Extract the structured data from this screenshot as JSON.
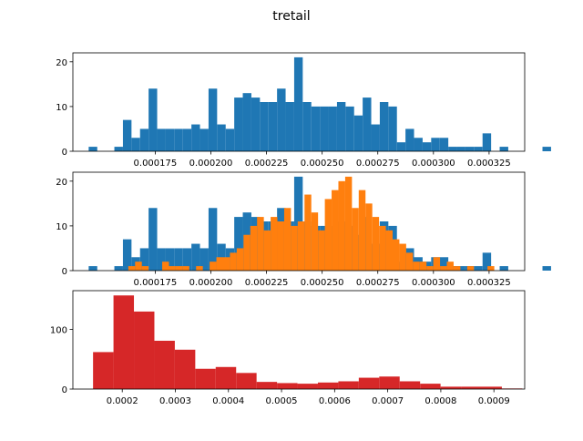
{
  "title": "tretail",
  "colors": {
    "blue": "#1f77b4",
    "orange": "#ff7f0e",
    "red": "#d62728"
  },
  "chart_data": [
    {
      "type": "bar",
      "subtype": "histogram",
      "xlim": [
        0.000138,
        0.000341
      ],
      "ylim": [
        0,
        22
      ],
      "yticks": [
        0,
        10,
        20
      ],
      "xticks": [
        0.000175,
        0.0002,
        0.000225,
        0.00025,
        0.000275,
        0.0003,
        0.000325
      ],
      "xtick_labels": [
        "0.000175",
        "0.000200",
        "0.000225",
        "0.000250",
        "0.000275",
        "0.000300",
        "0.000325"
      ],
      "bin_start": 0.0001451,
      "bin_width": 3.847e-06,
      "series": [
        {
          "color": "blue",
          "values": [
            1,
            0,
            0,
            1,
            7,
            3,
            5,
            14,
            5,
            5,
            5,
            5,
            6,
            5,
            14,
            6,
            5,
            12,
            13,
            12,
            11,
            11,
            14,
            11,
            21,
            11,
            10,
            10,
            10,
            11,
            10,
            8,
            12,
            6,
            11,
            10,
            2,
            5,
            3,
            2,
            3,
            3,
            1,
            1,
            1,
            1,
            4,
            0,
            1,
            0,
            0,
            0,
            0,
            1
          ]
        }
      ]
    },
    {
      "type": "bar",
      "subtype": "histogram",
      "xlim": [
        0.000138,
        0.000341
      ],
      "ylim": [
        0,
        22
      ],
      "yticks": [
        0,
        10,
        20
      ],
      "xticks": [
        0.000175,
        0.0002,
        0.000225,
        0.00025,
        0.000275,
        0.0003,
        0.000325
      ],
      "xtick_labels": [
        "0.000175",
        "0.000200",
        "0.000225",
        "0.000250",
        "0.000275",
        "0.000300",
        "0.000325"
      ],
      "series": [
        {
          "color": "blue",
          "bin_start": 0.0001451,
          "bin_width": 3.847e-06,
          "values": [
            1,
            0,
            0,
            1,
            7,
            3,
            5,
            14,
            5,
            5,
            5,
            5,
            6,
            5,
            14,
            6,
            5,
            12,
            13,
            12,
            11,
            11,
            14,
            11,
            21,
            11,
            10,
            10,
            10,
            11,
            10,
            8,
            12,
            6,
            11,
            10,
            2,
            5,
            3,
            2,
            3,
            3,
            1,
            1,
            1,
            1,
            4,
            0,
            1,
            0,
            0,
            0,
            0,
            1
          ]
        },
        {
          "color": "orange",
          "bin_start": 0.0001629,
          "bin_width": 3.045e-06,
          "values": [
            1,
            2,
            1,
            0,
            0,
            2,
            1,
            1,
            1,
            0,
            1,
            0,
            2,
            3,
            3,
            4,
            5,
            8,
            10,
            12,
            9,
            12,
            11,
            14,
            10,
            11,
            17,
            13,
            9,
            16,
            18,
            20,
            21,
            14,
            18,
            15,
            12,
            10,
            9,
            7,
            6,
            4,
            2,
            2,
            1,
            3,
            1,
            2,
            1,
            0,
            1,
            0,
            0,
            1
          ]
        }
      ]
    },
    {
      "type": "bar",
      "subtype": "histogram",
      "xlim": [
        0.000107,
        0.000958
      ],
      "ylim": [
        0,
        165
      ],
      "yticks": [
        0,
        100
      ],
      "xticks": [
        0.0002,
        0.0003,
        0.0004,
        0.0005,
        0.0006,
        0.0007,
        0.0008,
        0.0009
      ],
      "xtick_labels": [
        "0.0002",
        "0.0003",
        "0.0004",
        "0.0005",
        "0.0006",
        "0.0007",
        "0.0008",
        "0.0009"
      ],
      "series": [
        {
          "color": "red",
          "bin_start": 0.000145,
          "bin_width": 3.85e-05,
          "values": [
            62,
            157,
            130,
            81,
            66,
            34,
            37,
            27,
            12,
            10,
            9,
            11,
            13,
            19,
            21,
            13,
            9,
            4,
            4,
            4,
            1
          ]
        }
      ]
    }
  ]
}
